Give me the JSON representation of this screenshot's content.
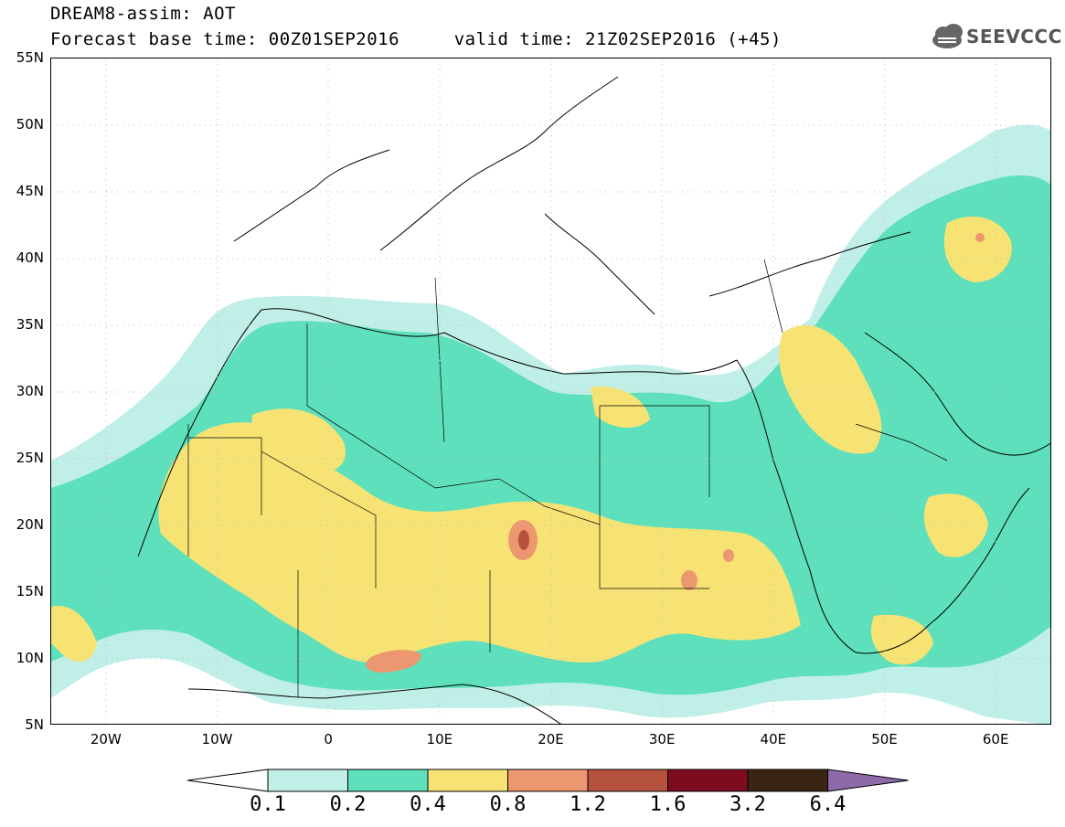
{
  "title": {
    "line1": "DREAM8-assim: AOT",
    "line2": "Forecast base time: 00Z01SEP2016     valid time: 21Z02SEP2016 (+45)"
  },
  "logo": {
    "text": "SEEVCCC",
    "icon": "cloud-icon"
  },
  "map": {
    "lat_labels": [
      "55N",
      "50N",
      "45N",
      "40N",
      "35N",
      "30N",
      "25N",
      "20N",
      "15N",
      "10N",
      "5N"
    ],
    "lon_labels": [
      "20W",
      "10W",
      "0",
      "10E",
      "20E",
      "30E",
      "40E",
      "50E",
      "60E"
    ],
    "extent": {
      "lon_min": -25,
      "lon_max": 65,
      "lat_min": 5,
      "lat_max": 55
    }
  },
  "colorbar": {
    "labels": [
      "0.1",
      "0.2",
      "0.4",
      "0.8",
      "1.2",
      "1.6",
      "3.2",
      "6.4"
    ],
    "colors": [
      "#ffffff",
      "#c0efe8",
      "#5de0bb",
      "#f6e374",
      "#ec9770",
      "#b4523e",
      "#7d0c20",
      "#3a2414",
      "#8f6aa9"
    ]
  }
}
